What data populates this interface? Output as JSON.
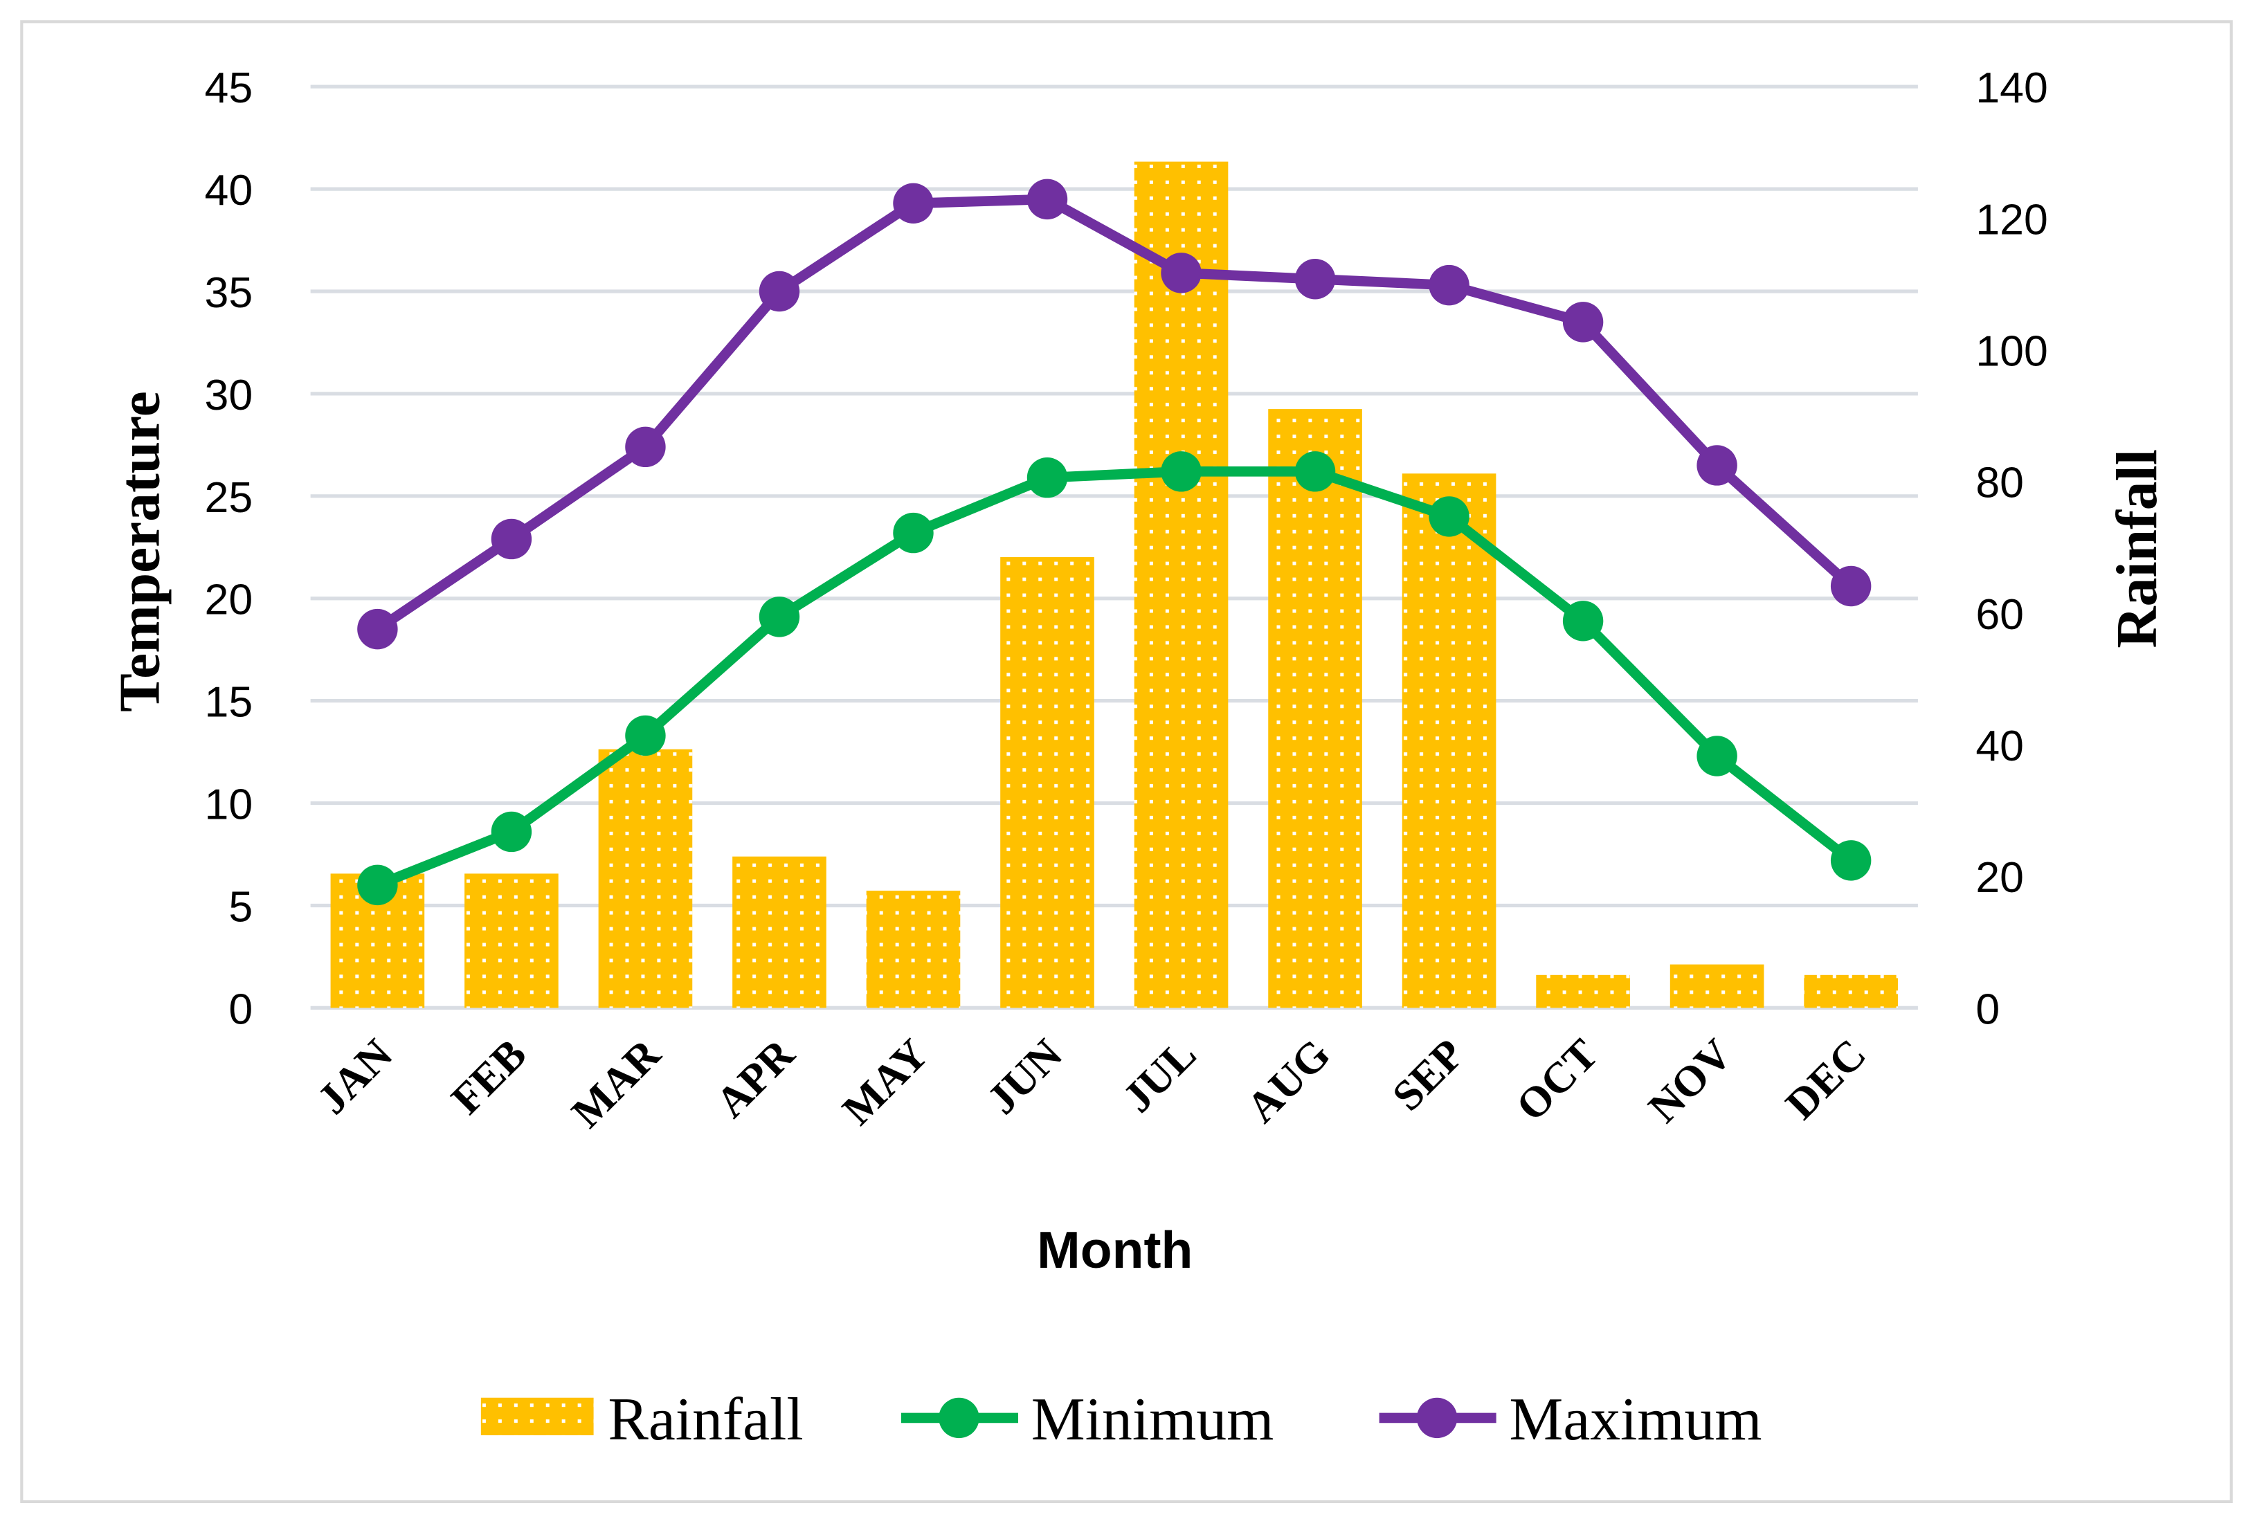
{
  "chart_data": {
    "type": "bar+line",
    "title": "",
    "xlabel": "Month",
    "ylabel": "Temperature",
    "y2label": "Rainfall",
    "categories": [
      "JAN",
      "FEB",
      "MAR",
      "APR",
      "MAY",
      "JUN",
      "JUL",
      "AUG",
      "SEP",
      "OCT",
      "NOV",
      "DEC"
    ],
    "ylim": [
      0,
      45
    ],
    "y_ticks": [
      0,
      5,
      10,
      15,
      20,
      25,
      30,
      35,
      40,
      45
    ],
    "y2lim": [
      0,
      140
    ],
    "y2_ticks": [
      0,
      20,
      40,
      60,
      80,
      100,
      120,
      140
    ],
    "grid": true,
    "legend_position": "bottom",
    "series": [
      {
        "name": "Rainfall",
        "type": "bar",
        "axis": "right",
        "color": "#FFC000",
        "values": [
          20.4,
          20.4,
          39.3,
          23,
          17.8,
          68.5,
          128.6,
          91,
          81.2,
          5,
          6.6,
          5
        ]
      },
      {
        "name": "Minimum",
        "type": "line",
        "axis": "left",
        "color": "#00B050",
        "values": [
          6,
          8.6,
          13.3,
          19.1,
          23.2,
          25.9,
          26.2,
          26.2,
          24,
          18.9,
          12.3,
          7.2
        ]
      },
      {
        "name": "Maximum",
        "type": "line",
        "axis": "left",
        "color": "#7030A0",
        "values": [
          18.5,
          22.9,
          27.4,
          35,
          39.3,
          39.5,
          35.9,
          35.6,
          35.3,
          33.5,
          26.5,
          20.6
        ]
      }
    ]
  }
}
